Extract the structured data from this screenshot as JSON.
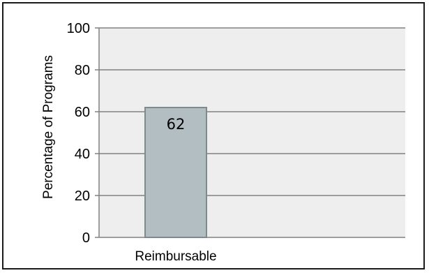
{
  "chart_data": {
    "type": "bar",
    "categories": [
      "Reimbursable"
    ],
    "values": [
      62
    ],
    "data_labels": [
      "62"
    ],
    "title": "",
    "xlabel": "",
    "ylabel": "Percentage of Programs",
    "ylim": [
      0,
      100
    ],
    "yticks": [
      "0",
      "20",
      "40",
      "60",
      "80",
      "100"
    ],
    "grid": true,
    "legend": "none",
    "colors": {
      "plot_background": "#eeeeee",
      "bar_fill": "#b3bec3",
      "bar_stroke": "#7f8a8e",
      "gridline": "#808080",
      "frame_border": "#1a1a1a"
    }
  }
}
